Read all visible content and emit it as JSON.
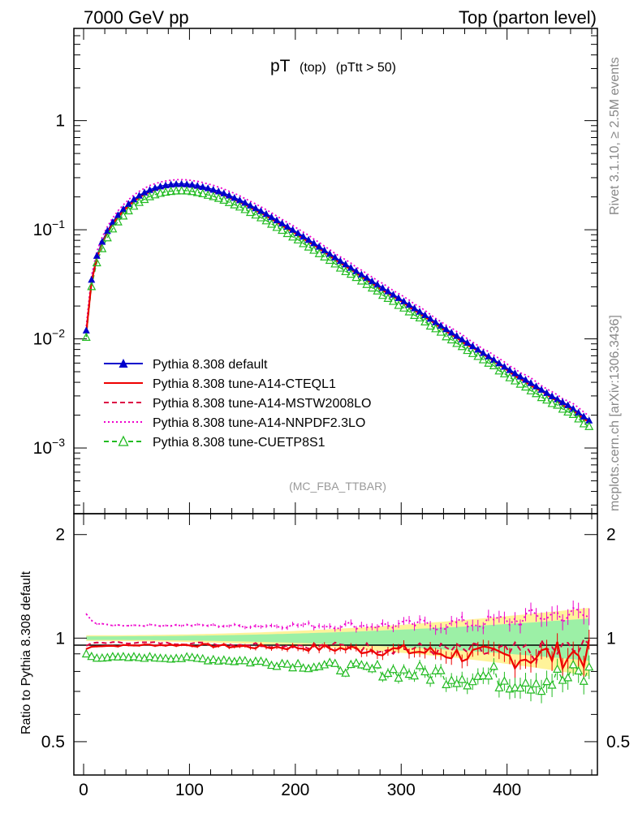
{
  "header": {
    "left": "7000 GeV pp",
    "right": "Top (parton level)"
  },
  "plot_title": {
    "main": "pT",
    "sub1": "(top)",
    "sub2": "(pTtt > 50)"
  },
  "analysis_tag": "(MC_FBA_TTBAR)",
  "side_labels": {
    "rivet": "Rivet 3.1.10, ≥ 2.5M events",
    "mcplots": "mcplots.cern.ch [arXiv:1306.3436]"
  },
  "ratio_ylabel": "Ratio to Pythia 8.308 default",
  "main_ticks": {
    "y": [
      {
        "value": 1,
        "base": "1",
        "exp": ""
      },
      {
        "value": 0.1,
        "base": "10",
        "exp": "−1"
      },
      {
        "value": 0.01,
        "base": "10",
        "exp": "−2"
      },
      {
        "value": 0.001,
        "base": "10",
        "exp": "−3"
      }
    ]
  },
  "ratio_ticks": {
    "y": [
      "2",
      "1",
      "0.5"
    ]
  },
  "x_ticks": [
    "0",
    "100",
    "200",
    "300",
    "400"
  ],
  "legend": [
    {
      "label": "Pythia 8.308 default",
      "color": "#0000cc",
      "style": "solid",
      "marker": "filled-triangle"
    },
    {
      "label": "Pythia 8.308 tune-A14-CTEQL1",
      "color": "#ee0000",
      "style": "solid",
      "marker": "none"
    },
    {
      "label": "Pythia 8.308 tune-A14-MSTW2008LO",
      "color": "#dd0044",
      "style": "dashed",
      "marker": "none"
    },
    {
      "label": "Pythia 8.308 tune-A14-NNPDF2.3LO",
      "color": "#ee00cc",
      "style": "dotted",
      "marker": "none"
    },
    {
      "label": "Pythia 8.308 tune-CUETP8S1",
      "color": "#22bb22",
      "style": "dashed",
      "marker": "open-triangle"
    }
  ],
  "chart_data": {
    "type": "line",
    "x_range": [
      0,
      480
    ],
    "y_scale": "log",
    "y_range": [
      0.00025,
      7
    ],
    "ratio_range": [
      0.4,
      2.3
    ],
    "series": [
      {
        "name": "Pythia 8.308 default",
        "color": "#0000cc"
      },
      {
        "name": "Pythia 8.308 tune-A14-CTEQL1",
        "color": "#ee0000"
      },
      {
        "name": "Pythia 8.308 tune-A14-MSTW2008LO",
        "color": "#dd0044"
      },
      {
        "name": "Pythia 8.308 tune-A14-NNPDF2.3LO",
        "color": "#ee00cc"
      },
      {
        "name": "Pythia 8.308 tune-CUETP8S1",
        "color": "#22bb22"
      }
    ],
    "default_curve": {
      "x": [
        2.5,
        7.5,
        12.5,
        17.5,
        22.5,
        27.5,
        32.5,
        40,
        50,
        60,
        70,
        80,
        90,
        100,
        110,
        120,
        130,
        140,
        150,
        160,
        170,
        180,
        190,
        200,
        220,
        240,
        260,
        280,
        300,
        320,
        340,
        360,
        380,
        400,
        420,
        440,
        460,
        477.5
      ],
      "y": [
        0.012,
        0.035,
        0.058,
        0.078,
        0.098,
        0.118,
        0.137,
        0.165,
        0.2,
        0.228,
        0.248,
        0.26,
        0.265,
        0.262,
        0.252,
        0.238,
        0.222,
        0.202,
        0.183,
        0.163,
        0.145,
        0.127,
        0.111,
        0.097,
        0.073,
        0.054,
        0.0405,
        0.0305,
        0.023,
        0.0172,
        0.0128,
        0.0096,
        0.0072,
        0.0054,
        0.0041,
        0.0031,
        0.0024,
        0.0018
      ]
    },
    "ratio_shape": {
      "x": [
        2.5,
        10,
        30,
        60,
        100,
        150,
        200,
        250,
        300,
        350,
        400,
        450,
        477.5
      ],
      "CTEQL1": [
        0.93,
        0.95,
        0.95,
        0.955,
        0.955,
        0.945,
        0.94,
        0.93,
        0.92,
        0.9,
        0.88,
        0.9,
        0.9
      ],
      "MSTW2008LO": [
        0.95,
        0.97,
        0.97,
        0.97,
        0.965,
        0.96,
        0.955,
        0.945,
        0.935,
        0.92,
        0.9,
        0.92,
        0.92
      ],
      "NNPDF23LO": [
        1.18,
        1.1,
        1.09,
        1.09,
        1.09,
        1.085,
        1.09,
        1.09,
        1.09,
        1.1,
        1.12,
        1.18,
        1.15
      ],
      "CUETP8S1": [
        0.9,
        0.88,
        0.88,
        0.88,
        0.875,
        0.86,
        0.84,
        0.82,
        0.8,
        0.78,
        0.77,
        0.76,
        0.78
      ]
    }
  }
}
